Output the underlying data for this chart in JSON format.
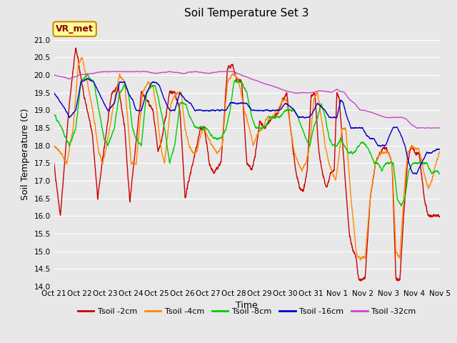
{
  "title": "Soil Temperature Set 3",
  "xlabel": "Time",
  "ylabel": "Soil Temperature (C)",
  "ylim": [
    14.0,
    21.5
  ],
  "yticks": [
    14.0,
    14.5,
    15.0,
    15.5,
    16.0,
    16.5,
    17.0,
    17.5,
    18.0,
    18.5,
    19.0,
    19.5,
    20.0,
    20.5,
    21.0
  ],
  "colors": {
    "Tsoil -2cm": "#cc0000",
    "Tsoil -4cm": "#ff8800",
    "Tsoil -8cm": "#00cc00",
    "Tsoil -16cm": "#0000cc",
    "Tsoil -32cm": "#cc44cc"
  },
  "bg_color": "#e8e8e8",
  "plot_bg": "#e8e8e8",
  "grid_color": "#ffffff",
  "annotation_text": "VR_met",
  "annotation_bg": "#ffff99",
  "annotation_border": "#cc8800",
  "x_tick_labels": [
    "Oct 21",
    "Oct 22",
    "Oct 23",
    "Oct 24",
    "Oct 25",
    "Oct 26",
    "Oct 27",
    "Oct 28",
    "Oct 29",
    "Oct 30",
    "Oct 31",
    "Nov 1",
    "Nov 2",
    "Nov 3",
    "Nov 4",
    "Nov 5"
  ],
  "n_points": 3360,
  "line_width": 1.0
}
